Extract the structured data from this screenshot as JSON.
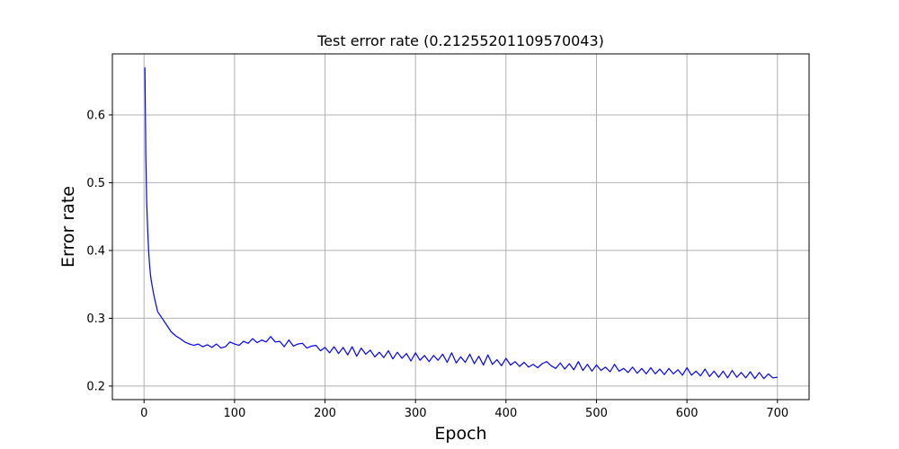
{
  "chart_data": {
    "type": "line",
    "title": "Test error rate (0.21255201109570043)",
    "xlabel": "Epoch",
    "ylabel": "Error rate",
    "xlim": [
      -35,
      735
    ],
    "ylim": [
      0.18,
      0.69
    ],
    "x_ticks": [
      0,
      100,
      200,
      300,
      400,
      500,
      600,
      700
    ],
    "x_tick_labels": [
      "0",
      "100",
      "200",
      "300",
      "400",
      "500",
      "600",
      "700"
    ],
    "y_ticks": [
      0.2,
      0.3,
      0.4,
      0.5,
      0.6
    ],
    "y_tick_labels": [
      "0.2",
      "0.3",
      "0.4",
      "0.5",
      "0.6"
    ],
    "grid": true,
    "series": [
      {
        "color": "#0000ff",
        "x": [
          1,
          2,
          3,
          4,
          5,
          6,
          7,
          8,
          10,
          12,
          15,
          20,
          25,
          30,
          35,
          40,
          45,
          50,
          55,
          60,
          65,
          70,
          75,
          80,
          85,
          90,
          95,
          100,
          105,
          110,
          115,
          120,
          125,
          130,
          135,
          140,
          145,
          150,
          155,
          160,
          165,
          170,
          175,
          180,
          185,
          190,
          195,
          200,
          205,
          210,
          215,
          220,
          225,
          230,
          235,
          240,
          245,
          250,
          255,
          260,
          265,
          270,
          275,
          280,
          285,
          290,
          295,
          300,
          305,
          310,
          315,
          320,
          325,
          330,
          335,
          340,
          345,
          350,
          355,
          360,
          365,
          370,
          375,
          380,
          385,
          390,
          395,
          400,
          405,
          410,
          415,
          420,
          425,
          430,
          435,
          440,
          445,
          450,
          455,
          460,
          465,
          470,
          475,
          480,
          485,
          490,
          495,
          500,
          505,
          510,
          515,
          520,
          525,
          530,
          535,
          540,
          545,
          550,
          555,
          560,
          565,
          570,
          575,
          580,
          585,
          590,
          595,
          600,
          605,
          610,
          615,
          620,
          625,
          630,
          635,
          640,
          645,
          650,
          655,
          660,
          665,
          670,
          675,
          680,
          685,
          690,
          695,
          700
        ],
        "y": [
          0.67,
          0.54,
          0.47,
          0.43,
          0.4,
          0.38,
          0.365,
          0.355,
          0.34,
          0.327,
          0.31,
          0.3,
          0.29,
          0.28,
          0.274,
          0.27,
          0.265,
          0.262,
          0.26,
          0.262,
          0.258,
          0.261,
          0.257,
          0.262,
          0.256,
          0.258,
          0.265,
          0.262,
          0.26,
          0.266,
          0.263,
          0.27,
          0.264,
          0.268,
          0.265,
          0.273,
          0.265,
          0.266,
          0.258,
          0.268,
          0.259,
          0.262,
          0.263,
          0.256,
          0.259,
          0.26,
          0.252,
          0.257,
          0.249,
          0.258,
          0.248,
          0.257,
          0.246,
          0.258,
          0.244,
          0.256,
          0.247,
          0.253,
          0.243,
          0.25,
          0.242,
          0.252,
          0.24,
          0.25,
          0.241,
          0.248,
          0.237,
          0.249,
          0.238,
          0.245,
          0.236,
          0.245,
          0.238,
          0.247,
          0.235,
          0.249,
          0.234,
          0.243,
          0.235,
          0.247,
          0.233,
          0.244,
          0.231,
          0.246,
          0.232,
          0.239,
          0.23,
          0.241,
          0.231,
          0.236,
          0.229,
          0.235,
          0.228,
          0.232,
          0.227,
          0.233,
          0.236,
          0.23,
          0.226,
          0.234,
          0.225,
          0.233,
          0.224,
          0.236,
          0.223,
          0.232,
          0.222,
          0.231,
          0.223,
          0.228,
          0.221,
          0.232,
          0.222,
          0.226,
          0.22,
          0.228,
          0.219,
          0.226,
          0.218,
          0.227,
          0.218,
          0.225,
          0.217,
          0.226,
          0.218,
          0.224,
          0.216,
          0.227,
          0.216,
          0.222,
          0.215,
          0.225,
          0.214,
          0.222,
          0.213,
          0.222,
          0.212,
          0.223,
          0.213,
          0.22,
          0.212,
          0.221,
          0.211,
          0.22,
          0.211,
          0.218,
          0.212,
          0.213
        ]
      }
    ]
  }
}
